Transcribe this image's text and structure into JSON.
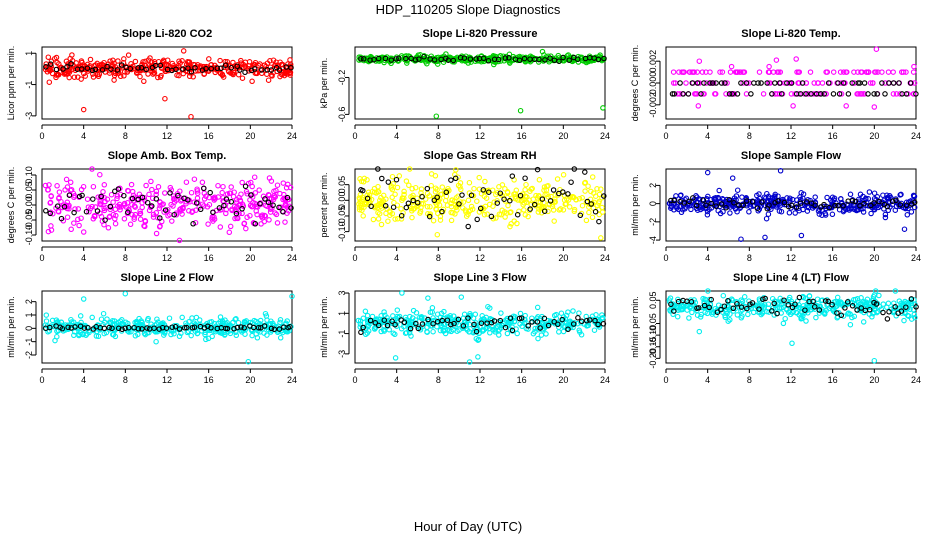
{
  "title": "HDP_110205  Slope Diagnostics",
  "xlabel": "Hour of Day (UTC)",
  "chart_data": [
    {
      "type": "scatter",
      "title": "Slope Li-820 CO2",
      "ylabel": "Licor ppm per min.",
      "xlim": [
        0,
        24
      ],
      "ylim": [
        -3.2,
        1.4
      ],
      "xticks": [
        0,
        4,
        8,
        12,
        16,
        20,
        24
      ],
      "xtick_labels": [
        "0",
        "4",
        "8",
        "12",
        "16",
        "20",
        "24"
      ],
      "yticks": [
        1,
        -1,
        -3
      ],
      "ytick_labels": [
        "1",
        "-1",
        "-3"
      ],
      "color": "#ff0000",
      "base_color": "#000000",
      "n_main": 380,
      "n_base": 50,
      "spread": 0.28,
      "base_spread": 0.12,
      "center": 0.05,
      "outliers": [
        [
          4.0,
          -2.6
        ],
        [
          11.8,
          -1.9
        ],
        [
          14.3,
          -3.05
        ],
        [
          13.6,
          1.15
        ],
        [
          0.7,
          -0.85
        ],
        [
          0.6,
          0.75
        ]
      ]
    },
    {
      "type": "scatter",
      "title": "Slope Li-820 Pressure",
      "ylabel": "kPa per min.",
      "xlim": [
        0,
        24
      ],
      "ylim": [
        -0.65,
        0.13
      ],
      "xticks": [
        0,
        4,
        8,
        12,
        16,
        20,
        24
      ],
      "xtick_labels": [
        "0",
        "4",
        "8",
        "12",
        "16",
        "20",
        "24"
      ],
      "yticks": [
        -0.2,
        -0.6
      ],
      "ytick_labels": [
        "-0.2",
        "-0.6"
      ],
      "color": "#00cc00",
      "base_color": "#000000",
      "n_main": 380,
      "n_base": 50,
      "spread": 0.02,
      "base_spread": 0.01,
      "center": 0.0,
      "outliers": [
        [
          7.8,
          -0.62
        ],
        [
          15.9,
          -0.56
        ],
        [
          23.8,
          -0.53
        ],
        [
          18.0,
          0.08
        ]
      ]
    },
    {
      "type": "scatter",
      "title": "Slope Li-820 Temp.",
      "ylabel": "degrees C per min.",
      "xlim": [
        0,
        24
      ],
      "ylim": [
        -0.0033,
        0.0033
      ],
      "xticks": [
        0,
        4,
        8,
        12,
        16,
        20,
        24
      ],
      "xtick_labels": [
        "0",
        "4",
        "8",
        "12",
        "16",
        "20",
        "24"
      ],
      "yticks": [
        0.002,
        0.0,
        -0.002
      ],
      "ytick_labels": [
        "0.002",
        "0.000",
        "-0.002"
      ],
      "color": "#ff00ff",
      "base_color": "#000000",
      "n_main": 170,
      "n_base": 60,
      "levels": [
        -0.001,
        0.0,
        0.001
      ],
      "base_levels": [
        -0.001,
        0.0
      ],
      "outliers": [
        [
          3.1,
          -0.0021
        ],
        [
          3.2,
          0.002
        ],
        [
          6.3,
          0.0015
        ],
        [
          9.9,
          0.0015
        ],
        [
          10.6,
          0.0021
        ],
        [
          12.5,
          0.0022
        ],
        [
          12.2,
          -0.0021
        ],
        [
          17.3,
          -0.0021
        ],
        [
          20.2,
          0.0031
        ],
        [
          20.0,
          -0.0022
        ],
        [
          23.8,
          0.0015
        ]
      ]
    },
    {
      "type": "scatter",
      "title": "Slope Amb. Box Temp.",
      "ylabel": "degrees C per min.",
      "xlim": [
        0,
        24
      ],
      "ylim": [
        -0.12,
        0.12
      ],
      "xticks": [
        0,
        4,
        8,
        12,
        16,
        20,
        24
      ],
      "xtick_labels": [
        "0",
        "4",
        "8",
        "12",
        "16",
        "20",
        "24"
      ],
      "yticks": [
        0.1,
        0.05,
        0.0,
        -0.05,
        -0.1
      ],
      "ytick_labels": [
        "0.10",
        "0.05",
        "0.00",
        "-0.05",
        "-0.10"
      ],
      "color": "#ff00ff",
      "base_color": "#000000",
      "n_main": 380,
      "n_base": 55,
      "spread": 0.038,
      "base_spread": 0.025,
      "center": 0.0,
      "outliers": [
        [
          4.8,
          0.12
        ],
        [
          13.2,
          -0.118
        ],
        [
          11.0,
          -0.095
        ],
        [
          4.0,
          -0.09
        ]
      ]
    },
    {
      "type": "scatter",
      "title": "Slope Gas Stream RH",
      "ylabel": "percent per min.",
      "xlim": [
        0,
        24
      ],
      "ylim": [
        -0.13,
        0.1
      ],
      "xticks": [
        0,
        4,
        8,
        12,
        16,
        20,
        24
      ],
      "xtick_labels": [
        "0",
        "4",
        "8",
        "12",
        "16",
        "20",
        "24"
      ],
      "yticks": [
        0.05,
        0.0,
        -0.05,
        -0.1
      ],
      "ytick_labels": [
        "0.05",
        "0.00",
        "-0.05",
        "-0.10"
      ],
      "color": "#ffff00",
      "base_color": "#000000",
      "n_main": 380,
      "n_base": 60,
      "spread": 0.035,
      "base_spread": 0.04,
      "center": 0.0,
      "outliers": [
        [
          23.6,
          -0.12
        ],
        [
          7.9,
          -0.11
        ],
        [
          0.9,
          0.07
        ]
      ]
    },
    {
      "type": "scatter",
      "title": "Slope Sample Flow",
      "ylabel": "ml/min per min.",
      "xlim": [
        0,
        24
      ],
      "ylim": [
        -4.1,
        3.8
      ],
      "xticks": [
        0,
        4,
        8,
        12,
        16,
        20,
        24
      ],
      "xtick_labels": [
        "0",
        "4",
        "8",
        "12",
        "16",
        "20",
        "24"
      ],
      "yticks": [
        2,
        0,
        -2,
        -4
      ],
      "ytick_labels": [
        "2",
        "0",
        "-2",
        "-4"
      ],
      "color": "#0000cc",
      "base_color": "#000000",
      "n_main": 380,
      "n_base": 55,
      "spread": 0.55,
      "base_spread": 0.25,
      "center": 0.0,
      "outliers": [
        [
          4.0,
          3.4
        ],
        [
          7.2,
          -3.9
        ],
        [
          11.0,
          3.6
        ],
        [
          9.5,
          -3.7
        ],
        [
          13.0,
          -3.5
        ],
        [
          22.9,
          -2.8
        ],
        [
          6.4,
          2.8
        ]
      ]
    },
    {
      "type": "scatter",
      "title": "Slope Line 2 Flow",
      "ylabel": "ml/min per min.",
      "xlim": [
        0,
        24
      ],
      "ylim": [
        -2.6,
        2.8
      ],
      "xticks": [
        0,
        4,
        8,
        12,
        16,
        20,
        24
      ],
      "xtick_labels": [
        "0",
        "4",
        "8",
        "12",
        "16",
        "20",
        "24"
      ],
      "yticks": [
        2,
        1,
        0,
        -1,
        -2
      ],
      "ytick_labels": [
        "2",
        "1",
        "0",
        "-1",
        "-2"
      ],
      "color": "#00eeee",
      "base_color": "#000000",
      "n_main": 380,
      "n_base": 60,
      "spread": 0.35,
      "base_spread": 0.05,
      "center": 0.05,
      "outliers": [
        [
          8.0,
          2.6
        ],
        [
          24.0,
          2.4
        ],
        [
          19.8,
          -2.5
        ],
        [
          4.0,
          2.2
        ]
      ]
    },
    {
      "type": "scatter",
      "title": "Slope Line 3 Flow",
      "ylabel": "ml/min per min.",
      "xlim": [
        0,
        24
      ],
      "ylim": [
        -3.9,
        3.2
      ],
      "xticks": [
        0,
        4,
        8,
        12,
        16,
        20,
        24
      ],
      "xtick_labels": [
        "0",
        "4",
        "8",
        "12",
        "16",
        "20",
        "24"
      ],
      "yticks": [
        3,
        1,
        -1,
        -3
      ],
      "ytick_labels": [
        "3",
        "1",
        "-1",
        "-3"
      ],
      "color": "#00eeee",
      "base_color": "#000000",
      "n_main": 380,
      "n_base": 55,
      "spread": 0.55,
      "base_spread": 0.35,
      "center": 0.0,
      "outliers": [
        [
          4.5,
          3.0
        ],
        [
          11.0,
          -3.8
        ],
        [
          11.8,
          -3.3
        ],
        [
          3.9,
          -3.4
        ],
        [
          7.0,
          2.5
        ],
        [
          10.2,
          2.6
        ]
      ]
    },
    {
      "type": "scatter",
      "title": "Slope Line 4 (LT) Flow",
      "ylabel": "ml/min per min.",
      "xlim": [
        0,
        24
      ],
      "ylim": [
        -0.22,
        0.09
      ],
      "xticks": [
        0,
        4,
        8,
        12,
        16,
        20,
        24
      ],
      "xtick_labels": [
        "0",
        "4",
        "8",
        "12",
        "16",
        "20",
        "24"
      ],
      "yticks": [
        0.05,
        -0.05,
        -0.1,
        -0.15,
        -0.2
      ],
      "ytick_labels": [
        "0.05",
        "-0.05",
        "-0.10",
        "-0.15",
        "-0.20"
      ],
      "color": "#00eeee",
      "base_color": "#000000",
      "n_main": 380,
      "n_base": 60,
      "spread": 0.025,
      "base_spread": 0.02,
      "center": 0.02,
      "outliers": [
        [
          20.0,
          -0.21
        ],
        [
          12.1,
          -0.135
        ],
        [
          3.2,
          -0.085
        ]
      ]
    }
  ]
}
